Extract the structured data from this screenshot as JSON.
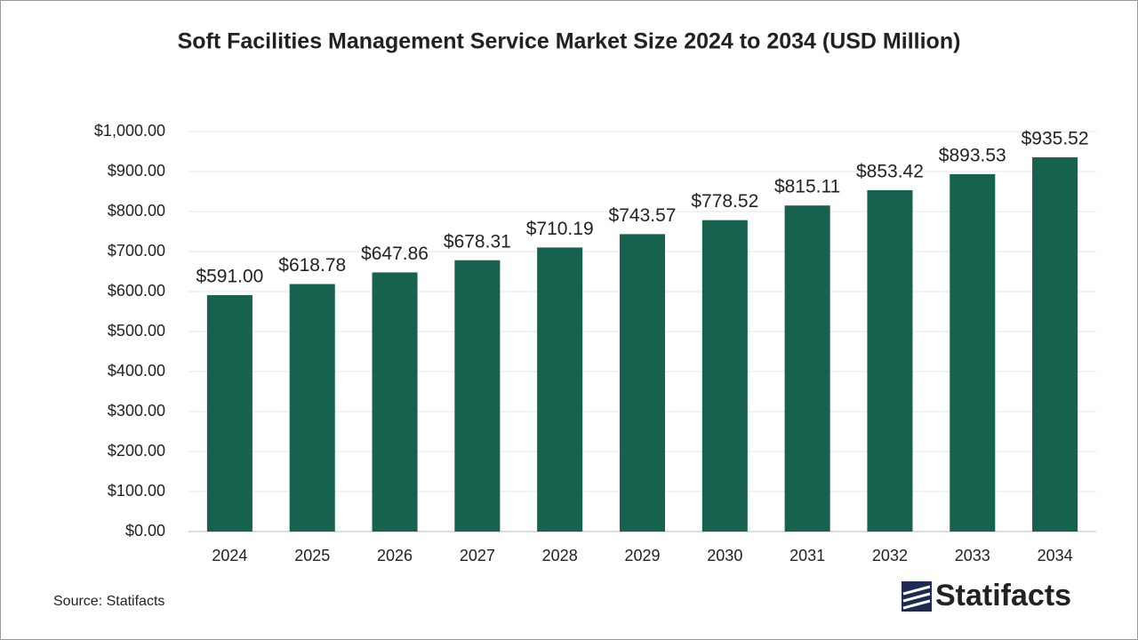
{
  "chart_data": {
    "type": "bar",
    "title": "Soft Facilities Management Service Market Size 2024 to 2034 (USD Million)",
    "categories": [
      "2024",
      "2025",
      "2026",
      "2027",
      "2028",
      "2029",
      "2030",
      "2031",
      "2032",
      "2033",
      "2034"
    ],
    "values": [
      591.0,
      618.78,
      647.86,
      678.31,
      710.19,
      743.57,
      778.52,
      815.11,
      853.42,
      893.53,
      935.52
    ],
    "value_labels": [
      "$591.00",
      "$618.78",
      "$647.86",
      "$678.31",
      "$710.19",
      "$743.57",
      "$778.52",
      "$815.11",
      "$853.42",
      "$893.53",
      "$935.52"
    ],
    "color": "#17614f",
    "ylim": [
      0,
      1000
    ],
    "yticks": [
      {
        "value": 0,
        "label": "$0.00"
      },
      {
        "value": 100,
        "label": "$100.00"
      },
      {
        "value": 200,
        "label": "$200.00"
      },
      {
        "value": 300,
        "label": "$300.00"
      },
      {
        "value": 400,
        "label": "$400.00"
      },
      {
        "value": 500,
        "label": "$500.00"
      },
      {
        "value": 600,
        "label": "$600.00"
      },
      {
        "value": 700,
        "label": "$700.00"
      },
      {
        "value": 800,
        "label": "$800.00"
      },
      {
        "value": 900,
        "label": "$900.00"
      },
      {
        "value": 1000,
        "label": "$1,000.00"
      }
    ],
    "grid": true
  },
  "source": "Source: Statifacts",
  "logo": "Statifacts"
}
